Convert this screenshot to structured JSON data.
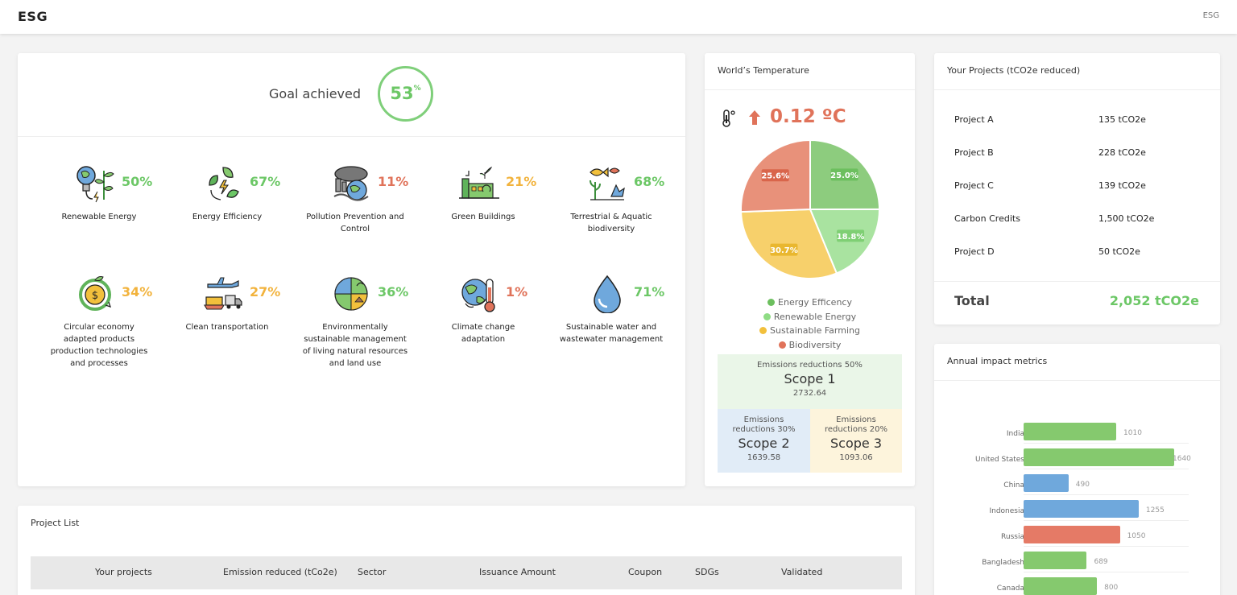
{
  "app": {
    "brand": "ESG",
    "top_right": "ESG"
  },
  "goal": {
    "label": "Goal achieved",
    "value": "53",
    "unit": "%"
  },
  "categories": [
    {
      "pct": "50%",
      "name": "Renewable Energy",
      "color": "#6cc766",
      "icon": "renewable-energy-icon"
    },
    {
      "pct": "67%",
      "name": "Energy Efficiency",
      "color": "#6cc766",
      "icon": "energy-efficiency-icon"
    },
    {
      "pct": "11%",
      "name": "Pollution Prevention and Control",
      "color": "#e0735a",
      "icon": "pollution-icon"
    },
    {
      "pct": "21%",
      "name": "Green Buildings",
      "color": "#f2b33d",
      "icon": "green-buildings-icon"
    },
    {
      "pct": "68%",
      "name": "Terrestrial & Aquatic biodiversity",
      "color": "#6cc766",
      "icon": "biodiversity-icon"
    },
    {
      "pct": "34%",
      "name": "Circular economy adapted products production technologies and processes",
      "color": "#f2b33d",
      "icon": "circular-economy-icon"
    },
    {
      "pct": "27%",
      "name": "Clean transportation",
      "color": "#f2b33d",
      "icon": "transportation-icon"
    },
    {
      "pct": "36%",
      "name": "Environmentally sustainable management of living natural resources and land use",
      "color": "#6cc766",
      "icon": "land-use-icon"
    },
    {
      "pct": "1%",
      "name": "Climate change adaptation",
      "color": "#e0735a",
      "icon": "climate-icon"
    },
    {
      "pct": "71%",
      "name": "Sustainable water and wastewater management",
      "color": "#6cc766",
      "icon": "water-drop-icon"
    }
  ],
  "temperature": {
    "title": "World’s Temperature",
    "value": "0.12 ºC",
    "pie": [
      {
        "label": "Energy Efficency",
        "value": 25.0,
        "text": "25.0%",
        "color": "#8dcc7e",
        "badge": "#6cbf5e"
      },
      {
        "label": "Renewable Energy",
        "value": 18.8,
        "text": "18.8%",
        "color": "#a9e3a0",
        "badge": "#7fcf74"
      },
      {
        "label": "Sustainable Farming",
        "value": 30.7,
        "text": "30.7%",
        "color": "#f7d06b",
        "badge": "#e9b72f"
      },
      {
        "label": "Biodiversity",
        "value": 25.6,
        "text": "25.6%",
        "color": "#e8917a",
        "badge": "#d9654b"
      }
    ],
    "legend_dots": [
      "#6cbf5e",
      "#8fdc85",
      "#f2c03c",
      "#e0735a"
    ],
    "scopes": {
      "s1": {
        "sub": "Emissions reductions 50%",
        "title": "Scope 1",
        "value": "2732.64"
      },
      "s2": {
        "sub": "Emissions reductions 30%",
        "title": "Scope 2",
        "value": "1639.58"
      },
      "s3": {
        "sub": "Emissions reductions 20%",
        "title": "Scope 3",
        "value": "1093.06"
      }
    }
  },
  "projects": {
    "title": "Your Projects (tCO2e reduced)",
    "rows": [
      {
        "name": "Project A",
        "value": "135 tCO2e"
      },
      {
        "name": "Project B",
        "value": "228 tCO2e"
      },
      {
        "name": "Project C",
        "value": "139 tCO2e"
      },
      {
        "name": "Carbon Credits",
        "value": "1,500 tCO2e"
      },
      {
        "name": "Project D",
        "value": "50 tCO2e"
      }
    ],
    "total_label": "Total",
    "total_value": "2,052 tCO2e"
  },
  "annual": {
    "title": "Annual impact metrics",
    "colors": {
      "green": "#85c96e",
      "blue": "#6fa8dc",
      "red": "#e57a66"
    }
  },
  "chart_data": {
    "type": "bar",
    "orientation": "horizontal",
    "categories": [
      "India",
      "United States",
      "China",
      "Indonesia",
      "Russia",
      "Bangladesh",
      "Canada"
    ],
    "values": [
      1010,
      1640,
      490,
      1255,
      1050,
      689,
      800
    ],
    "labels": [
      "1010",
      "1640",
      "490",
      "1255",
      "1050",
      "689",
      "800"
    ],
    "colors": [
      "#85c96e",
      "#85c96e",
      "#6fa8dc",
      "#6fa8dc",
      "#e57a66",
      "#85c96e",
      "#85c96e"
    ],
    "xlim": [
      0,
      1800
    ]
  },
  "project_list": {
    "title": "Project List",
    "columns": [
      "Your projects",
      "Emission reduced (tCo2e)",
      "Sector",
      "Issuance Amount",
      "Coupon",
      "SDGs",
      "Validated"
    ]
  }
}
